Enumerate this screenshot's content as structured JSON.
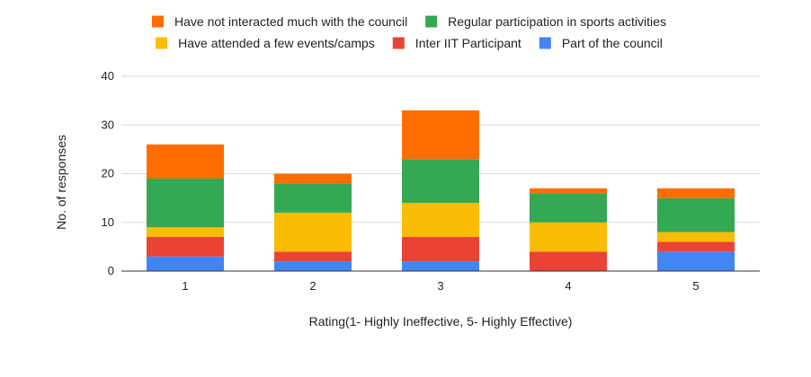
{
  "chart_data": {
    "type": "bar",
    "stacked": true,
    "title": "",
    "xlabel": "Rating(1- Highly Ineffective, 5- Highly Effective)",
    "ylabel": "No. of responses",
    "ylim": [
      0,
      40
    ],
    "yticks": [
      "0",
      "10",
      "20",
      "30",
      "40"
    ],
    "grid": true,
    "legend_position": "top",
    "categories": [
      "1",
      "2",
      "3",
      "4",
      "5"
    ],
    "series": [
      {
        "name": "Part of the council",
        "color": "#4285f4",
        "values": [
          3,
          2,
          2,
          0,
          4
        ]
      },
      {
        "name": "Inter IIT Participant",
        "color": "#ea4335",
        "values": [
          4,
          2,
          5,
          4,
          2
        ]
      },
      {
        "name": "Have attended a few events/camps",
        "color": "#fbbc04",
        "values": [
          2,
          8,
          7,
          6,
          2
        ]
      },
      {
        "name": "Regular participation in sports activities",
        "color": "#34a853",
        "values": [
          10,
          6,
          9,
          6,
          7
        ]
      },
      {
        "name": "Have not interacted much with the council",
        "color": "#ff6d01",
        "values": [
          7,
          2,
          10,
          1,
          2
        ]
      }
    ],
    "legend_rows": [
      [
        "Have not interacted much with the council",
        "Regular participation in sports activities"
      ],
      [
        "Have attended a few events/camps",
        "Inter IIT Participant",
        "Part of the council"
      ]
    ]
  }
}
